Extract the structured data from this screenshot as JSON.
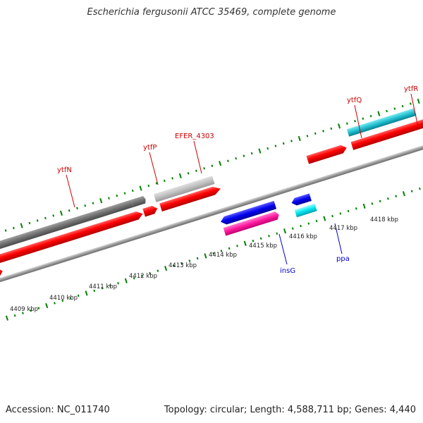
{
  "title": "Escherichia fergusonii ATCC 35469, complete genome",
  "footer": {
    "accession": "Accession: NC_011740",
    "summary": "Topology: circular; Length: 4,588,711 bp; Genes: 4,440"
  },
  "colors": {
    "top_strand_gene": "#ff0000",
    "bottom_strand_gene": "#ff0000",
    "pseudo_gene": "#808080",
    "cds_blue": "#0000ff",
    "cds_magenta": "#ff1493",
    "cds_cyan": "#00e5ee",
    "tick_green": "#008000",
    "label_red": "#cc0000",
    "label_blue": "#0000cc"
  },
  "scale_ticks": [
    "4409 kbp",
    "4410 kbp",
    "4411 kbp",
    "4412 kbp",
    "4413 kbp",
    "4414 kbp",
    "4415 kbp",
    "4416 kbp",
    "4417 kbp",
    "4418 kbp"
  ],
  "gene_labels": {
    "ytfN": "ytfN",
    "ytfP": "ytfP",
    "efer": "EFER_4303",
    "ytfQ": "ytfQ",
    "ytfR": "ytfR",
    "insG": "insG",
    "ppa": "ppa"
  }
}
